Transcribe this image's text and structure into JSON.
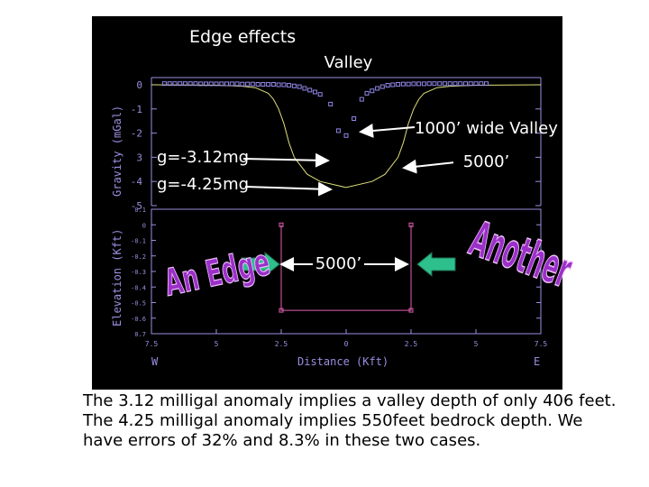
{
  "titles": {
    "edge_effects": "Edge effects",
    "valley": "Valley"
  },
  "annotations": {
    "wide_valley": "1000’ wide Valley",
    "width_top": "5000’",
    "width_bottom": "5000’",
    "g1": "g=-3.12mg",
    "g2": "g=-4.25mg",
    "an_edge": "An Edge",
    "another": "Another"
  },
  "axes": {
    "gravity_ylabel": "Gravity (mGal)",
    "elevation_ylabel": "Elevation (Kft)",
    "xlabel": "Distance (Kft)",
    "x_left_label": "W",
    "x_right_label": "E",
    "gravity_ticks": [
      "0",
      "-1",
      "-2",
      "3",
      "-4",
      "-5"
    ],
    "elevation_ticks": [
      "0.1",
      "0",
      "-0.1",
      "-0.2",
      "-0.3",
      "-0.4",
      "-0.5",
      "-0.6",
      "0.7"
    ],
    "x_ticks": [
      "7.5",
      "5",
      "2.5",
      "0",
      "2.5",
      "5",
      "7.5"
    ]
  },
  "caption": "The 3.12 milligal anomaly implies a valley depth of only 406 feet. The 4.25 milligal anomaly implies 550feet bedrock depth. We have errors of 32% and 8.3% in these two cases.",
  "colors": {
    "background": "#000000",
    "axis": "#9a8fe0",
    "curve": "#e0df7a",
    "observed": "#8f86e6",
    "model": "#e15fb0",
    "arrow_fill": "#2dbf8c",
    "edge_word": "#9b30c8"
  },
  "chart_data": [
    {
      "type": "scatter",
      "title": "Edge effects",
      "xlabel": "Distance (Kft)",
      "ylabel": "Gravity (mGal)",
      "xlim": [
        -7.5,
        7.5
      ],
      "ylim": [
        -5,
        0.2
      ],
      "series": [
        {
          "kind": "line",
          "x": [
            -7.5,
            -5,
            -4,
            -3.5,
            -3,
            -2.8,
            -2.6,
            -2.4,
            -2.2,
            -2.0,
            -1.5,
            -1.0,
            0,
            1.0,
            1.5,
            2.0,
            2.2,
            2.4,
            2.6,
            2.8,
            3.0,
            3.5,
            4,
            5,
            7.5
          ],
          "y": [
            0,
            -0.02,
            -0.06,
            -0.12,
            -0.35,
            -0.6,
            -1.0,
            -1.6,
            -2.4,
            -3.0,
            -3.7,
            -4.0,
            -4.25,
            -4.0,
            -3.7,
            -3.0,
            -2.4,
            -1.6,
            -1.0,
            -0.6,
            -0.35,
            -0.12,
            -0.06,
            -0.02,
            0
          ]
        },
        {
          "kind": "points",
          "x": [
            -7.0,
            -6.8,
            -6.6,
            -6.4,
            -6.2,
            -6.0,
            -5.8,
            -5.6,
            -5.4,
            -5.2,
            -5.0,
            -4.8,
            -4.6,
            -4.4,
            -4.2,
            -4.0,
            -3.8,
            -3.6,
            -3.4,
            -3.2,
            -3.0,
            -2.8,
            -2.6,
            -2.4,
            -2.2,
            -2.0,
            -1.8,
            -1.6,
            -1.4,
            -1.2,
            -1.0,
            -0.6,
            -0.3,
            0,
            0.3,
            0.6,
            0.8,
            1.0,
            1.2,
            1.4,
            1.6,
            1.8,
            2.0,
            2.2,
            2.4,
            2.6,
            2.8,
            3.0,
            3.2,
            3.4,
            3.6,
            3.8,
            4.0,
            4.2,
            4.4,
            4.6,
            4.8,
            5.0,
            5.2,
            5.4
          ],
          "y": [
            0.05,
            0.05,
            0.05,
            0.05,
            0.05,
            0.05,
            0.05,
            0.04,
            0.04,
            0.04,
            0.04,
            0.04,
            0.04,
            0.04,
            0.04,
            0.03,
            0.03,
            0.03,
            0.02,
            0.02,
            0.02,
            0.02,
            0.0,
            0.0,
            -0.02,
            -0.05,
            -0.08,
            -0.15,
            -0.22,
            -0.3,
            -0.4,
            -0.8,
            -1.9,
            -2.1,
            -1.4,
            -0.6,
            -0.35,
            -0.25,
            -0.15,
            -0.08,
            -0.02,
            0.0,
            0.02,
            0.03,
            0.03,
            0.04,
            0.04,
            0.04,
            0.05,
            0.05,
            0.05,
            0.05,
            0.05,
            0.05,
            0.05,
            0.05,
            0.05,
            0.05,
            0.05,
            0.05
          ]
        }
      ]
    },
    {
      "type": "line",
      "xlabel": "Distance (Kft)",
      "ylabel": "Elevation (Kft)",
      "xlim": [
        -7.5,
        7.5
      ],
      "ylim": [
        -0.7,
        0.1
      ],
      "series": [
        {
          "kind": "model",
          "x": [
            -2.5,
            -2.5,
            2.5,
            2.5
          ],
          "y": [
            0,
            -0.55,
            -0.55,
            0
          ]
        }
      ]
    }
  ]
}
